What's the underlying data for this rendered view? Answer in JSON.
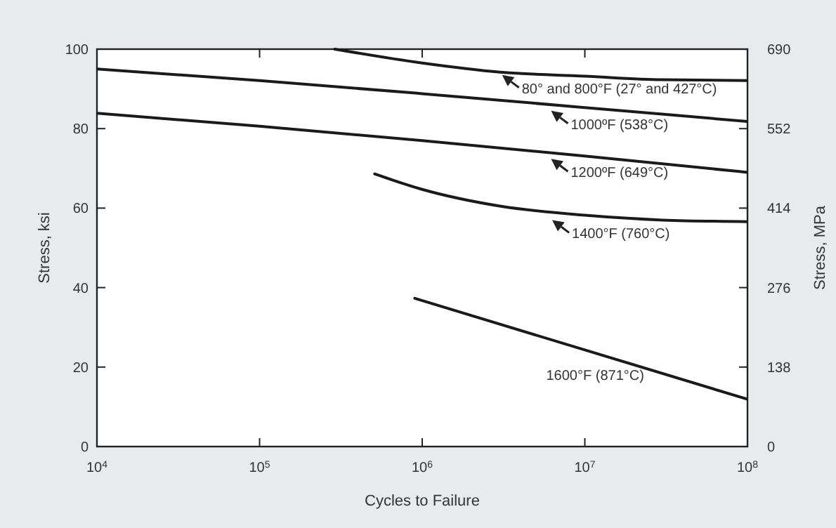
{
  "chart_data": {
    "type": "line",
    "xlabel": "Cycles to Failure",
    "ylabel": "Stress, ksi",
    "y2label": "Stress, MPa",
    "log": "x",
    "grid": false,
    "marker": "none",
    "line_style": "solid",
    "xlim": [
      10000,
      100000000
    ],
    "xticks": [
      {
        "value": 10000,
        "label": "10$^{4}$"
      },
      {
        "value": 100000,
        "label": "10$^{5}$"
      },
      {
        "value": 1000000,
        "label": "10$^{6}$"
      },
      {
        "value": 10000000,
        "label": "10$^{7}$"
      },
      {
        "value": 100000000,
        "label": "10$^{8}$"
      }
    ],
    "ylim": [
      0,
      100
    ],
    "yticks": [
      0,
      20,
      40,
      60,
      80,
      100
    ],
    "y2lim": [
      0,
      690
    ],
    "y2ticks": [
      0,
      138,
      276,
      414,
      552,
      690
    ],
    "series": [
      {
        "color": "#1a1a1a",
        "x": [
          290000,
          1000000,
          3000000,
          10000000,
          30000000,
          100000000
        ],
        "values": [
          100,
          96.5,
          94.2,
          93.2,
          92.3,
          92.1
        ]
      },
      {
        "color": "#1a1a1a",
        "x": [
          10000,
          100000,
          1000000,
          10000000,
          100000000
        ],
        "values": [
          95,
          92.1,
          88.8,
          85.3,
          81.8
        ]
      },
      {
        "color": "#1a1a1a",
        "x": [
          10000,
          100000,
          1000000,
          10000000,
          100000000
        ],
        "values": [
          83.9,
          80.6,
          77,
          73.1,
          69
        ]
      },
      {
        "color": "#1a1a1a",
        "x": [
          510000,
          1000000,
          3000000,
          10000000,
          30000000,
          100000000
        ],
        "values": [
          68.6,
          64.7,
          60.5,
          58.2,
          57,
          56.6
        ]
      },
      {
        "name": "1600°F (871°C)",
        "color": "#1a1a1a",
        "x": [
          900000,
          100000000
        ],
        "values": [
          37.3,
          11.9
        ]
      }
    ],
    "annotations": [
      {
        "text": "80° and 800°F (27° and 427°C)",
        "x": 3100000,
        "y": 93.5
      },
      {
        "text": "1000ºF (538°C)",
        "x": 6200000,
        "y": 84.5
      },
      {
        "text": "1200ºF (649°C)",
        "x": 6200000,
        "y": 72.4
      },
      {
        "text": "1400°F (760°C)",
        "x": 6300000,
        "y": 57
      }
    ]
  }
}
